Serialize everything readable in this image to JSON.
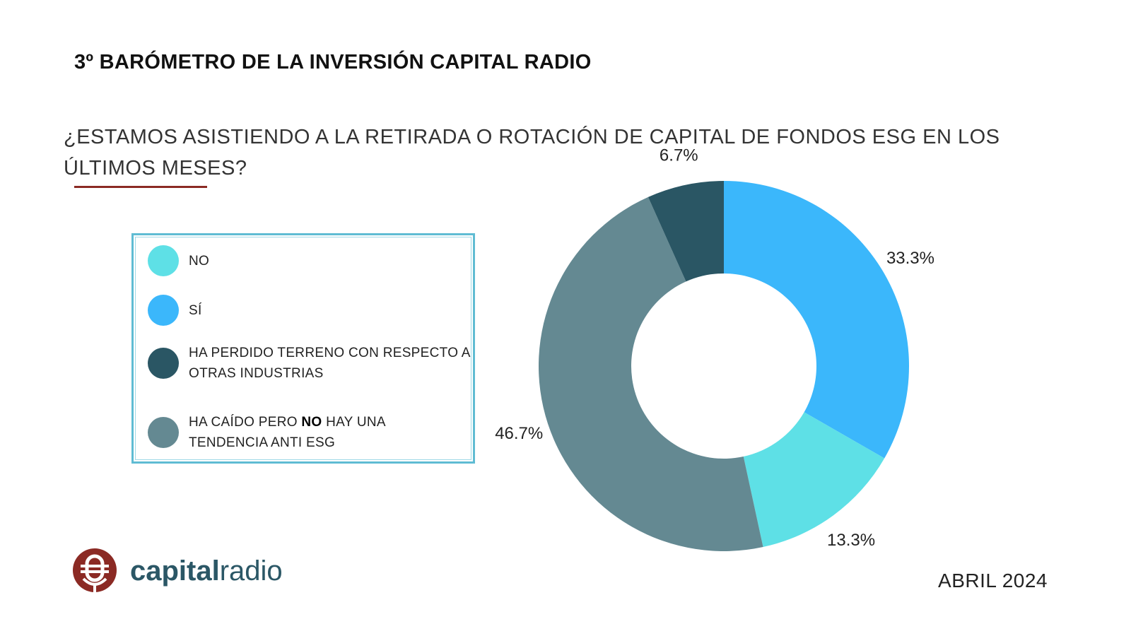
{
  "header": {
    "title": "3º BARÓMETRO DE LA INVERSIÓN CAPITAL RADIO",
    "question": "¿ESTAMOS ASISTIENDO A LA RETIRADA O ROTACIÓN DE CAPITAL DE FONDOS ESG EN LOS ÚLTIMOS MESES?"
  },
  "legend": {
    "items": [
      {
        "label": "NO",
        "color": "#5ee0e6"
      },
      {
        "label": "SÍ",
        "color": "#3bb7fb"
      },
      {
        "label": "HA PERDIDO TERRENO CON RESPECTO A OTRAS INDUSTRIAS",
        "color": "#2a5664"
      },
      {
        "label_parts": [
          "HA CAÍDO PERO ",
          "NO",
          " HAY UNA TENDENCIA ANTI ESG"
        ],
        "color": "#648992"
      }
    ]
  },
  "chart_data": {
    "type": "pie",
    "donut": true,
    "title": "¿ESTAMOS ASISTIENDO A LA RETIRADA O ROTACIÓN DE CAPITAL DE FONDOS ESG EN LOS ÚLTIMOS MESES?",
    "slices": [
      {
        "name": "SÍ",
        "value": 33.3,
        "label": "33.3%",
        "color": "#3bb7fb"
      },
      {
        "name": "NO",
        "value": 13.3,
        "label": "13.3%",
        "color": "#5ee0e6"
      },
      {
        "name": "HA CAÍDO PERO NO HAY UNA TENDENCIA ANTI ESG",
        "value": 46.7,
        "label": "46.7%",
        "color": "#648992"
      },
      {
        "name": "HA PERDIDO TERRENO CON RESPECTO A OTRAS INDUSTRIAS",
        "value": 6.7,
        "label": "6.7%",
        "color": "#2a5664"
      }
    ],
    "legend_position": "left"
  },
  "footer": {
    "logo_bold": "capital",
    "logo_light": "radio",
    "date": "ABRIL 2024"
  }
}
